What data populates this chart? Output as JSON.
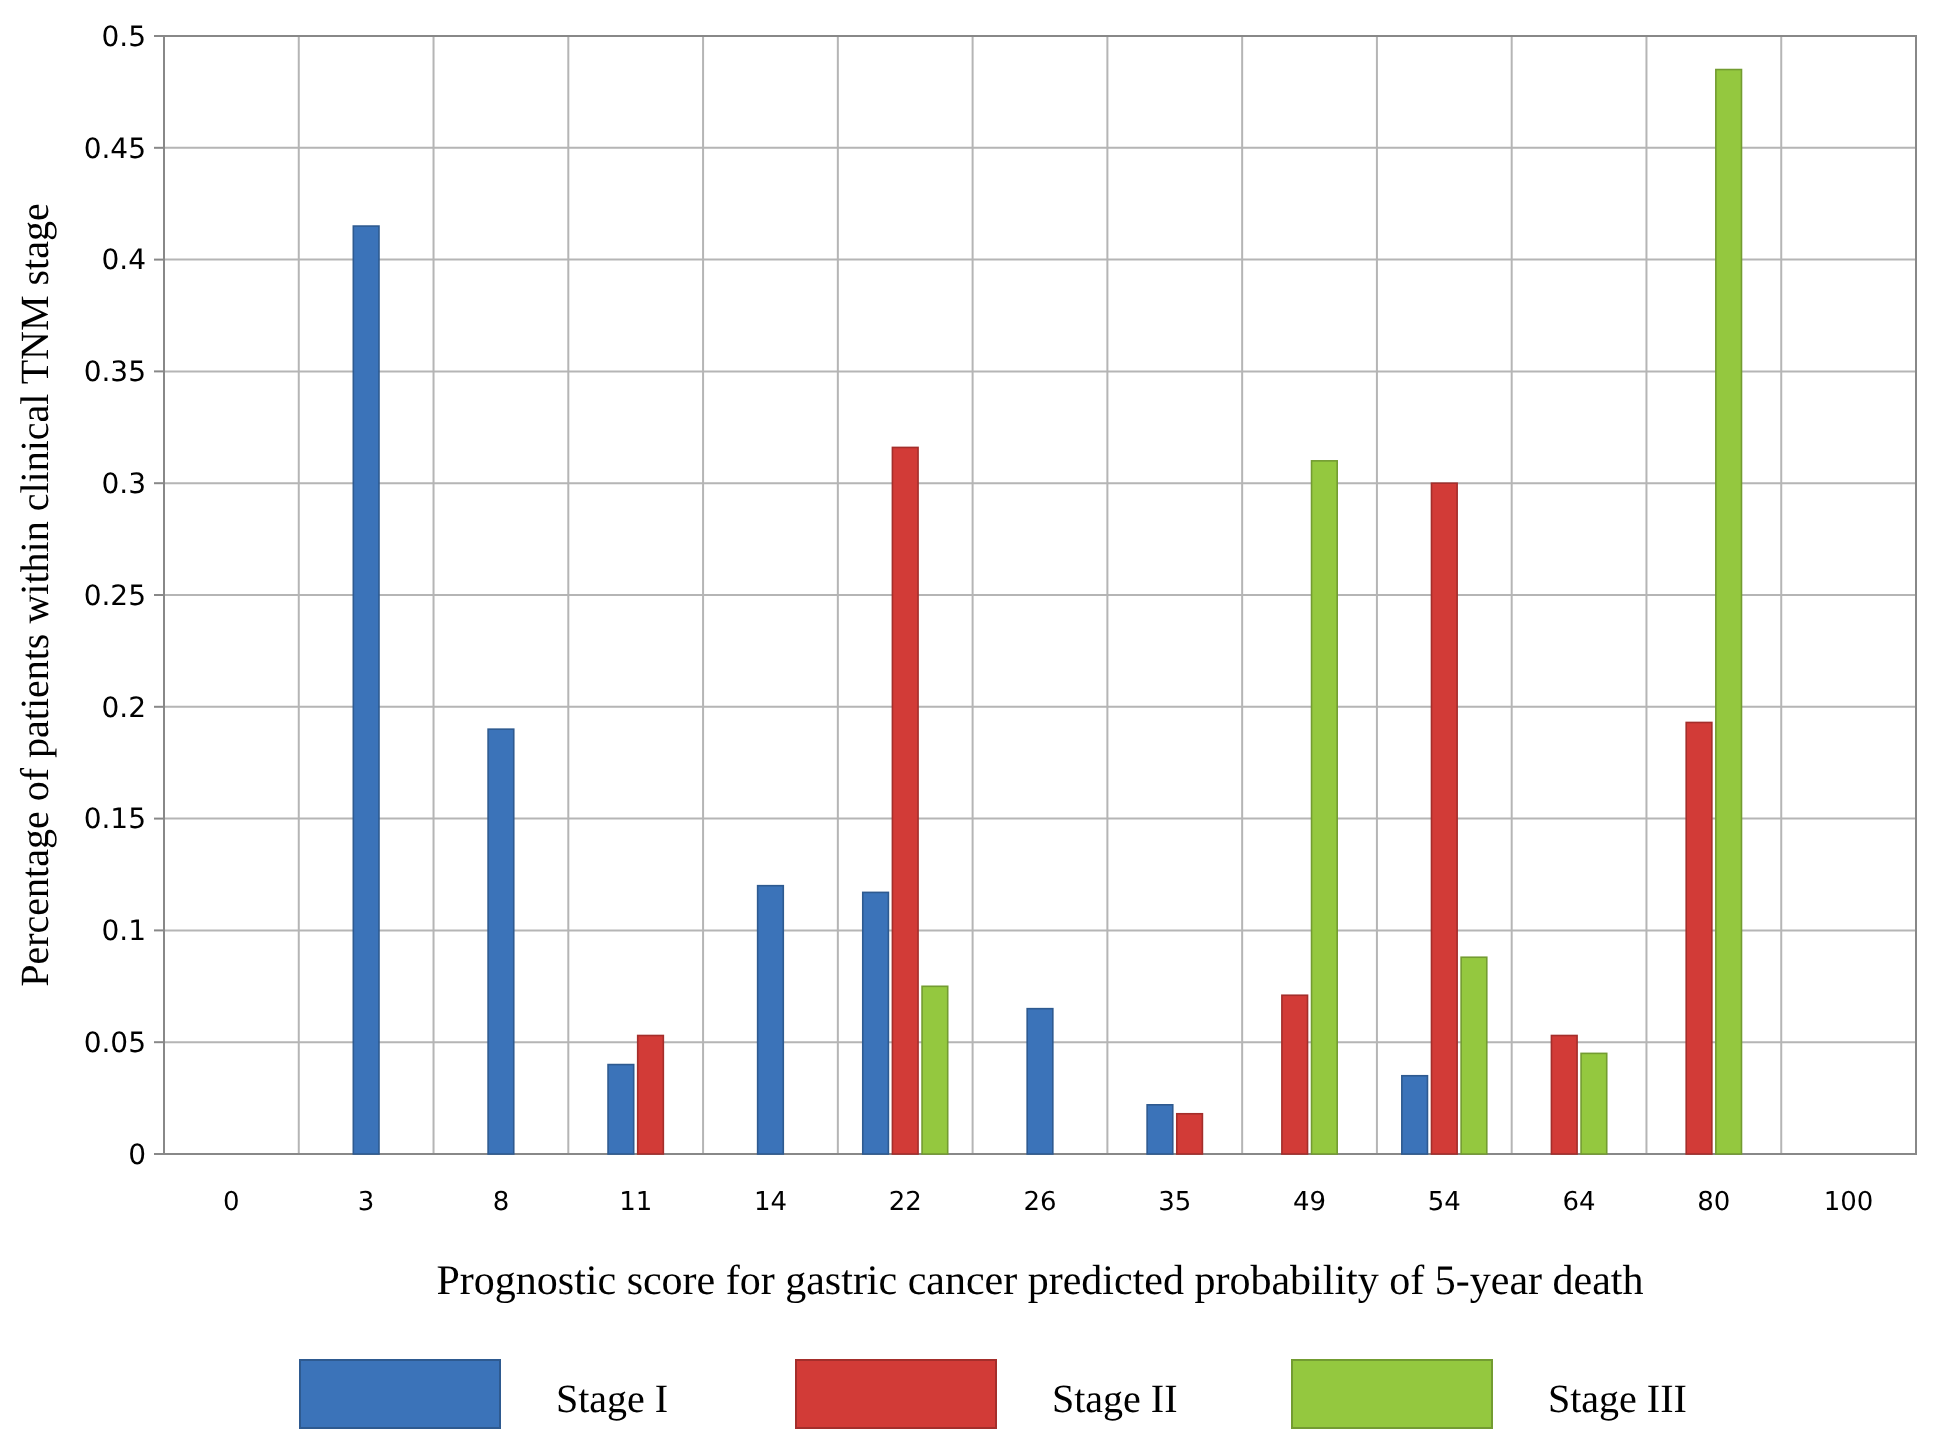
{
  "chart_data": {
    "type": "bar",
    "xlabel": "Prognostic score for gastric cancer predicted probability of 5-year death",
    "ylabel": "Percentage of patients within clinical TNM stage",
    "categories": [
      "0",
      "3",
      "8",
      "11",
      "14",
      "22",
      "26",
      "35",
      "49",
      "54",
      "64",
      "80",
      "100"
    ],
    "series": [
      {
        "name": "Stage I",
        "color": "#3b73b9",
        "values": [
          null,
          0.415,
          0.19,
          0.04,
          0.12,
          0.117,
          0.065,
          0.022,
          null,
          0.035,
          null,
          null,
          null
        ]
      },
      {
        "name": "Stage II",
        "color": "#d23b37",
        "values": [
          null,
          null,
          null,
          0.053,
          null,
          0.316,
          null,
          0.018,
          0.071,
          0.3,
          0.053,
          0.193,
          null
        ]
      },
      {
        "name": "Stage III",
        "color": "#94c83f",
        "values": [
          null,
          null,
          null,
          null,
          null,
          0.075,
          null,
          null,
          0.31,
          0.088,
          0.045,
          0.485,
          null
        ]
      }
    ],
    "ylim": [
      0,
      0.5
    ],
    "yticks": [
      0,
      0.05,
      0.1,
      0.15,
      0.2,
      0.25,
      0.3,
      0.35,
      0.4,
      0.45,
      0.5
    ],
    "grid": true,
    "legend": "bottom"
  }
}
